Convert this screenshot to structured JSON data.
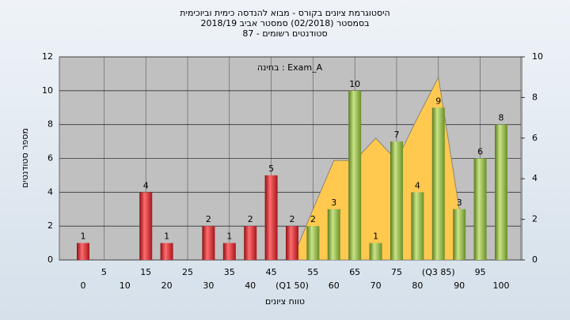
{
  "chart_data": {
    "type": "bar",
    "title": [
      "היסטוגרמת ציונים בקורס - מבוא להנדסה כימית וביוכימית",
      "בסמסטר (02/2018) סמסטר אביב 2018/19",
      "סטודנטים רשומים - 87"
    ],
    "annotation": "בחינה : Exam_A",
    "ylabel": "מספר סטודנטים",
    "xlabel": "טווח ציונים",
    "categories": [
      "0",
      "5",
      "10",
      "15",
      "20",
      "25",
      "30",
      "35",
      "40",
      "45",
      "(Q1 50)",
      "55",
      "60",
      "65",
      "70",
      "75",
      "80",
      "(Q3 85)",
      "90",
      "95",
      "100"
    ],
    "series": [
      {
        "color": "#d8232a",
        "values": [
          1,
          0,
          0,
          4,
          1,
          0,
          2,
          1,
          2,
          5,
          2,
          null,
          null,
          null,
          null,
          null,
          null,
          null,
          null,
          null,
          null
        ]
      },
      {
        "color": "#8cb43a",
        "values": [
          null,
          null,
          null,
          null,
          null,
          null,
          null,
          null,
          null,
          null,
          null,
          2,
          3,
          10,
          1,
          7,
          4,
          9,
          3,
          6,
          8
        ]
      },
      {
        "type": "area",
        "axis": "y2",
        "color": "#ffc94f",
        "values": [
          null,
          null,
          null,
          null,
          null,
          null,
          null,
          null,
          null,
          null,
          0,
          2.5,
          4.9,
          4.9,
          6,
          4.9,
          7,
          9,
          2.5,
          null,
          null
        ]
      }
    ],
    "ylim": [
      0,
      12
    ],
    "yticks": [
      0,
      2,
      4,
      6,
      8,
      10,
      12
    ],
    "y2lim": [
      0,
      10
    ],
    "y2ticks": [
      0,
      2,
      4,
      6,
      8,
      10
    ],
    "grid": true
  }
}
